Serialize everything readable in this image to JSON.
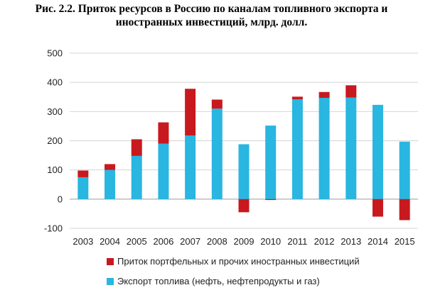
{
  "title_line1": "Рис. 2.2. Приток ресурсов в Россию по каналам топливного экспорта и",
  "title_line2": "иностранных инвестиций, млрд. долл.",
  "chart_data": {
    "type": "bar",
    "stacked": true,
    "categories": [
      "2003",
      "2004",
      "2005",
      "2006",
      "2007",
      "2008",
      "2009",
      "2010",
      "2011",
      "2012",
      "2013",
      "2014",
      "2015"
    ],
    "series": [
      {
        "name": "Экспорт топлива (нефть, нефтепродукты и газ)",
        "color": "#29b6e0",
        "values": [
          75,
          100,
          148,
          190,
          218,
          310,
          188,
          252,
          342,
          347,
          348,
          323,
          197
        ]
      },
      {
        "name": "Приток портфельных и прочих иностранных инвестиций",
        "color": "#c8191e",
        "values": [
          23,
          20,
          57,
          73,
          160,
          31,
          -45,
          -3,
          9,
          20,
          42,
          -60,
          -72
        ]
      }
    ],
    "ylim": [
      -100,
      500
    ],
    "yticks": [
      -100,
      0,
      100,
      200,
      300,
      400,
      500
    ],
    "grid": true,
    "legend_position": "bottom",
    "legend_order": [
      1,
      0
    ]
  }
}
